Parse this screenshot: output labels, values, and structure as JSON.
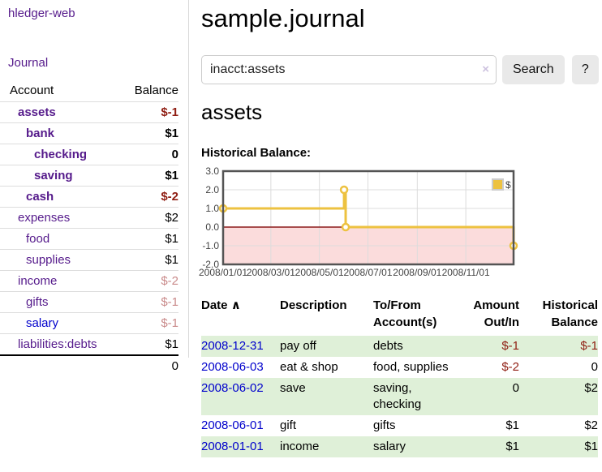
{
  "sidebar": {
    "brand": "hledger-web",
    "journal_link": "Journal",
    "accounts": {
      "header": {
        "account": "Account",
        "balance": "Balance"
      },
      "rows": [
        {
          "name": "assets",
          "balance": "$-1"
        },
        {
          "name": "bank",
          "balance": "$1"
        },
        {
          "name": "checking",
          "balance": "0"
        },
        {
          "name": "saving",
          "balance": "$1"
        },
        {
          "name": "cash",
          "balance": "$-2"
        },
        {
          "name": "expenses",
          "balance": "$2"
        },
        {
          "name": "food",
          "balance": "$1"
        },
        {
          "name": "supplies",
          "balance": "$1"
        },
        {
          "name": "income",
          "balance": "$-2"
        },
        {
          "name": "gifts",
          "balance": "$-1"
        },
        {
          "name": "salary",
          "balance": "$-1"
        },
        {
          "name": "liabilities:debts",
          "balance": "$1"
        }
      ],
      "total": "0"
    }
  },
  "header": {
    "title": "sample.journal"
  },
  "search": {
    "value": "inacct:assets",
    "clear_icon": "×",
    "button": "Search",
    "help": "?"
  },
  "account_page": {
    "heading": "assets",
    "chart_title": "Historical Balance:"
  },
  "chart_data": {
    "type": "line",
    "step": true,
    "title": "Historical Balance",
    "series": [
      {
        "name": "$",
        "points": [
          [
            "2008-01-01",
            1
          ],
          [
            "2008-06-01",
            2
          ],
          [
            "2008-06-03",
            0
          ],
          [
            "2008-12-31",
            -1
          ]
        ]
      }
    ],
    "xlim": [
      "2008-01-01",
      "2008-12-31"
    ],
    "ylim": [
      -2,
      3
    ],
    "yticks": [
      3,
      2,
      1,
      0,
      -1,
      -2
    ],
    "xticks": [
      {
        "t": "2008-01-01",
        "label": "2008/01/01"
      },
      {
        "t": "2008-03-01",
        "label": "2008/03/01"
      },
      {
        "t": "2008-05-01",
        "label": "2008/05/01"
      },
      {
        "t": "2008-07-01",
        "label": "2008/07/01"
      },
      {
        "t": "2008-09-01",
        "label": "2008/09/01"
      },
      {
        "t": "2008-11-01",
        "label": "2008/11/01"
      }
    ],
    "legend": {
      "position": "top-right",
      "label": "$"
    },
    "colors": {
      "line": "#edc240",
      "negative_region": "#fbdcdc",
      "zero_line": "#8b1a1a",
      "grid": "#dcdcdc",
      "border": "#545454",
      "tick_text": "#444444"
    }
  },
  "register": {
    "header": {
      "date": "Date",
      "sort_icon": "∧",
      "description": "Description",
      "accounts": "To/From Account(s)",
      "amount": "Amount Out/In",
      "balance": "Historical Balance"
    },
    "rows": [
      {
        "date": "2008-12-31",
        "description": "pay off",
        "accounts": "debts",
        "amount": "$-1",
        "balance": "$-1"
      },
      {
        "date": "2008-06-03",
        "description": "eat & shop",
        "accounts": "food, supplies",
        "amount": "$-2",
        "balance": "0"
      },
      {
        "date": "2008-06-02",
        "description": "save",
        "accounts": "saving, checking",
        "amount": "0",
        "balance": "$2"
      },
      {
        "date": "2008-06-01",
        "description": "gift",
        "accounts": "gifts",
        "amount": "$1",
        "balance": "$2"
      },
      {
        "date": "2008-01-01",
        "description": "income",
        "accounts": "salary",
        "amount": "$1",
        "balance": "$1"
      }
    ]
  },
  "colors": {
    "link_purple": "#551a8b",
    "link_blue": "#0000cc",
    "negative_strong": "#8f1d12",
    "negative_light": "#c98a8a",
    "row_stripe_green": "#dff0d8",
    "button_bg": "#e9e9e9"
  }
}
